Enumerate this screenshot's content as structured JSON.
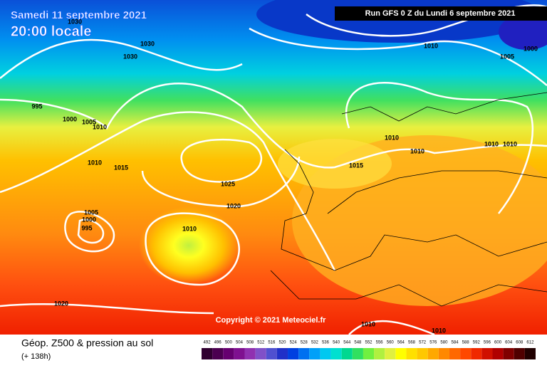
{
  "header": {
    "date": "Samedi 11 septembre 2021",
    "time": "20:00 locale",
    "run": "Run GFS 0 Z du Lundi 6 septembre 2021"
  },
  "copyright": "Copyright © 2021 Meteociel.fr",
  "footer": {
    "title": "Géop. Z500 & pression au sol",
    "lead": "(+ 138h)"
  },
  "isobar_labels": [
    "1030",
    "1030",
    "1030",
    "1010",
    "1005",
    "1000",
    "995",
    "1000",
    "1005",
    "1010",
    "1010",
    "1015",
    "1025",
    "1020",
    "1010",
    "1010",
    "1015",
    "1010",
    "1010",
    "1005",
    "1000",
    "995",
    "1010",
    "1020",
    "1010",
    "1010"
  ],
  "scale": {
    "values": [
      492,
      496,
      500,
      504,
      508,
      512,
      516,
      520,
      524,
      528,
      532,
      536,
      540,
      544,
      548,
      552,
      556,
      560,
      564,
      568,
      572,
      576,
      580,
      584,
      588,
      592,
      596,
      600,
      604,
      608,
      612
    ],
    "colors": [
      "#300030",
      "#4b0050",
      "#660070",
      "#7f1090",
      "#9030b0",
      "#8050c8",
      "#5050d0",
      "#2030c8",
      "#0040e0",
      "#0070f0",
      "#00a0f8",
      "#00c8f0",
      "#00e0d0",
      "#00d890",
      "#30e060",
      "#70f040",
      "#b0f040",
      "#e0f040",
      "#ffff00",
      "#ffe000",
      "#ffc800",
      "#ffa800",
      "#ff8800",
      "#ff6800",
      "#ff4800",
      "#f02800",
      "#d01000",
      "#b00000",
      "#800000",
      "#500000",
      "#200000"
    ]
  }
}
